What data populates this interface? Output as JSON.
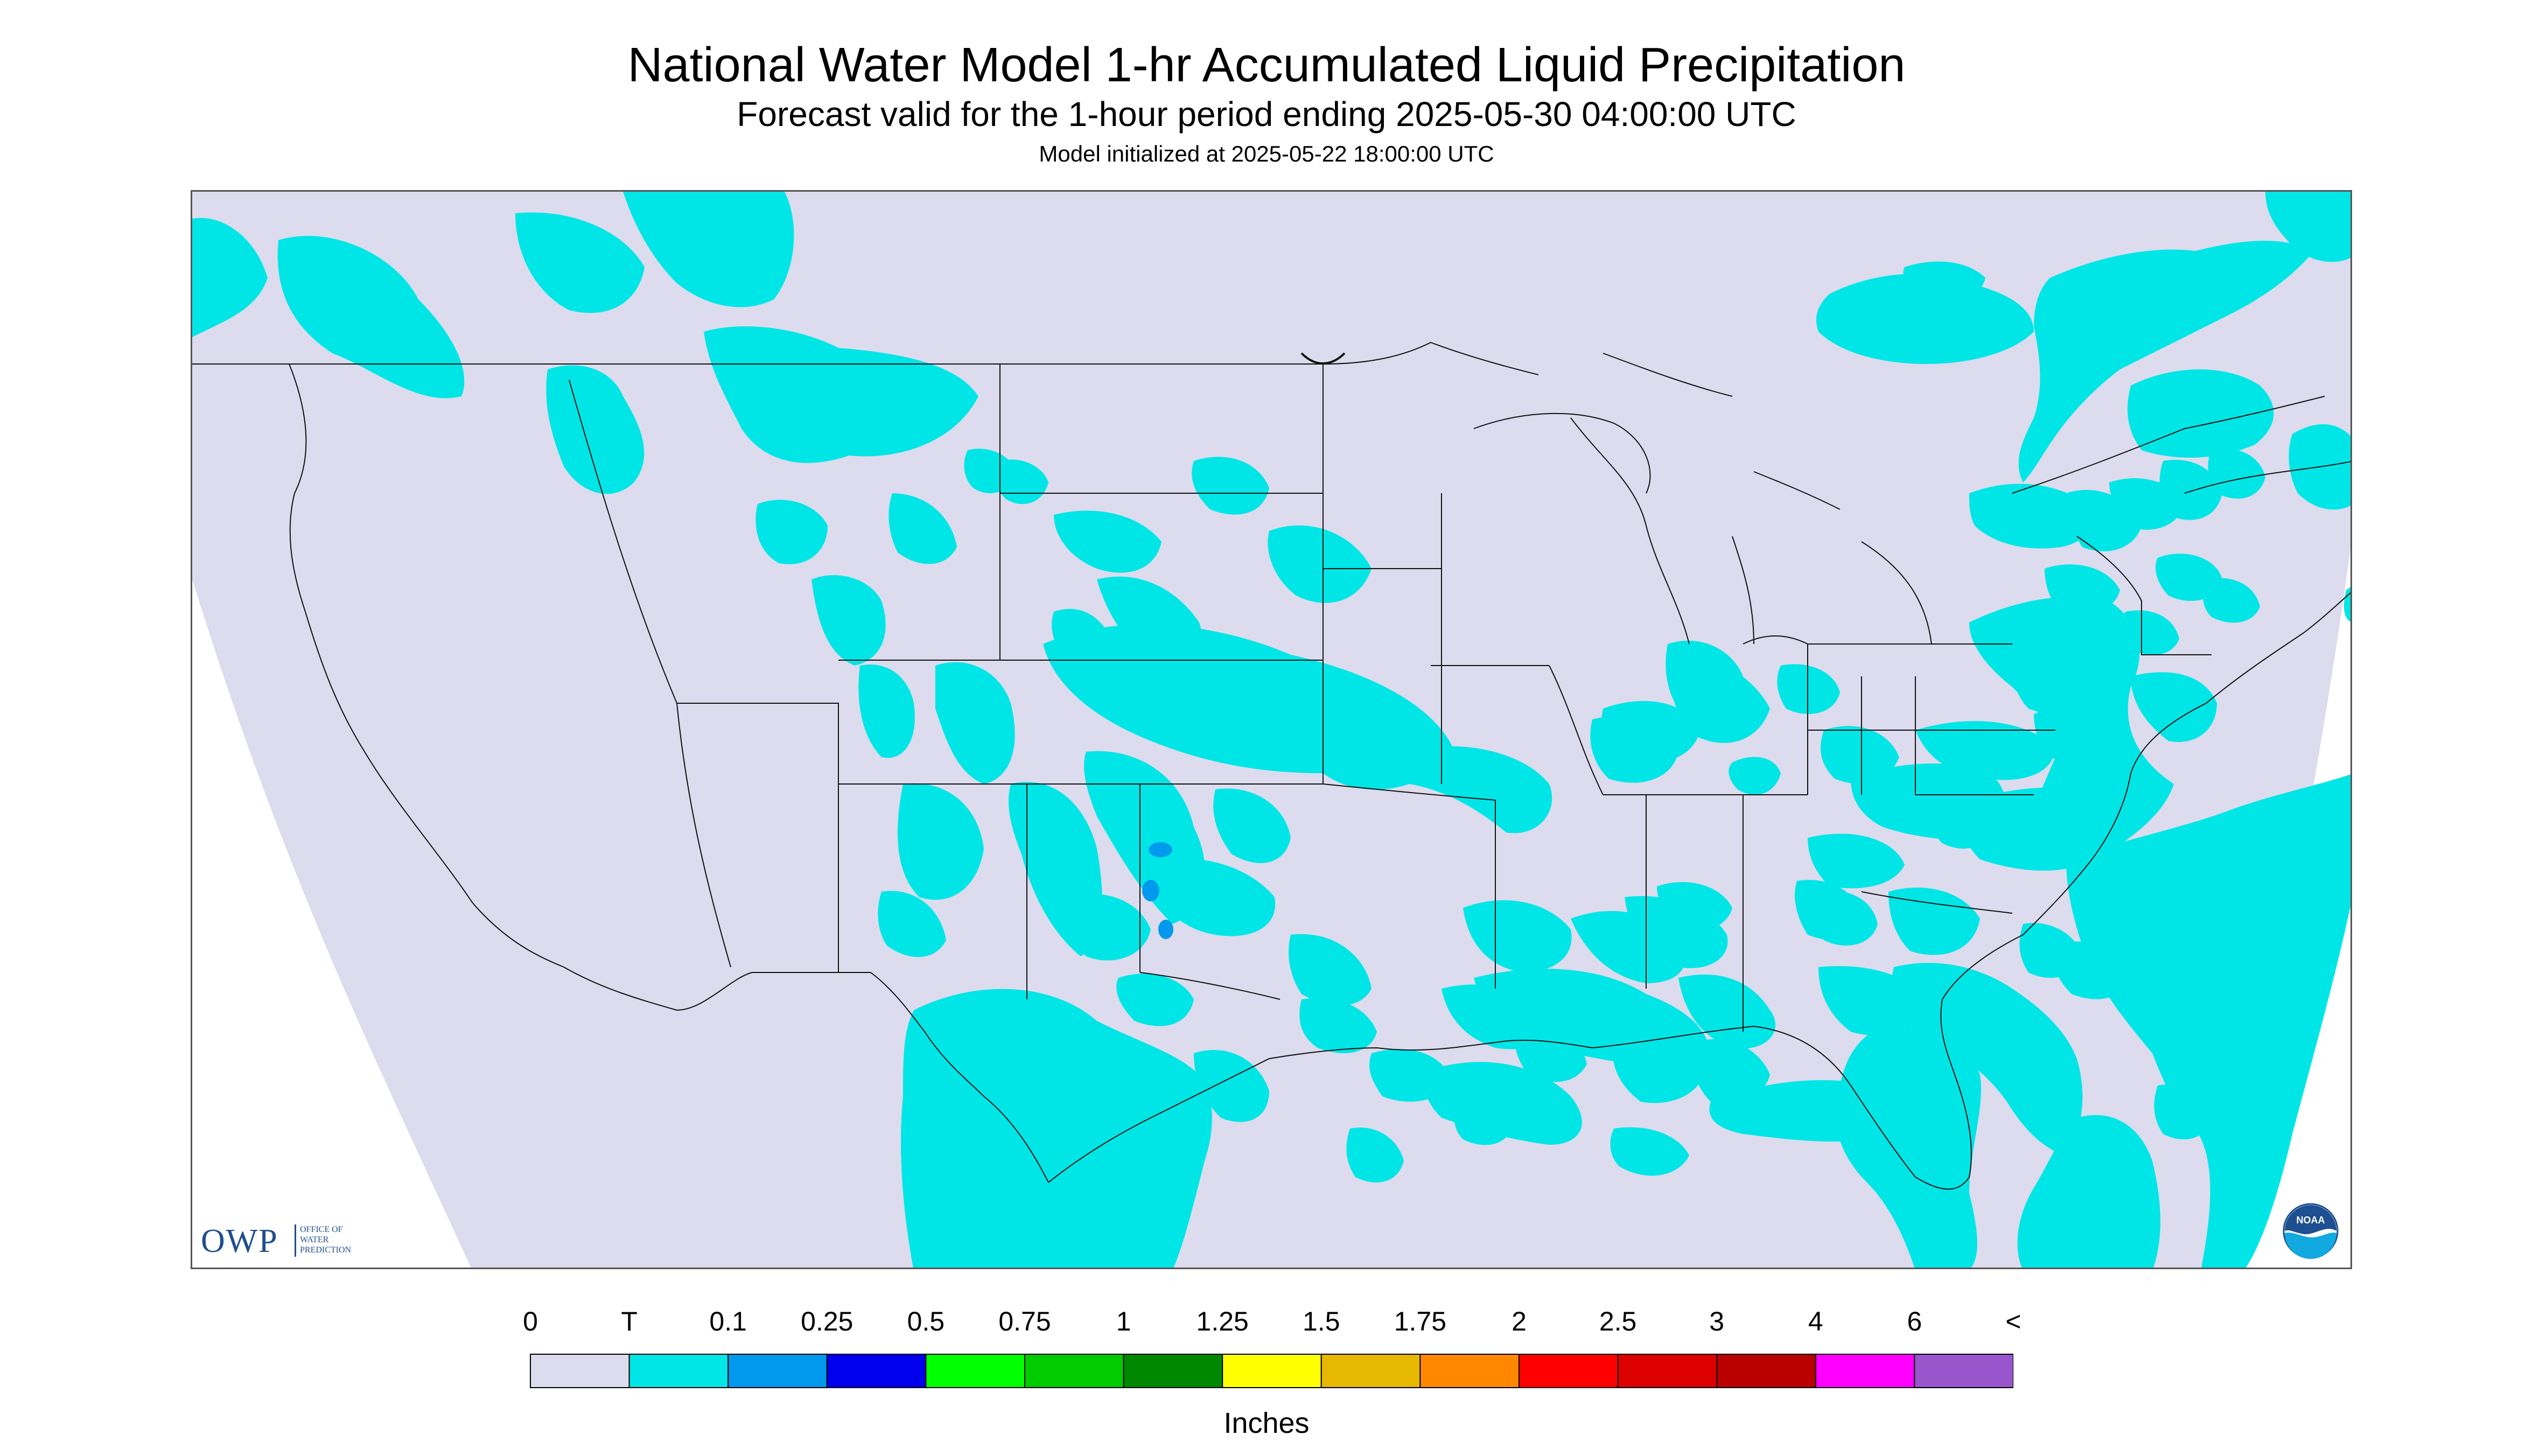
{
  "title": "National Water Model 1-hr Accumulated Liquid Precipitation",
  "subtitle": "Forecast valid for the 1-hour period ending 2025-05-30 04:00:00 UTC",
  "init_text": "Model initialized at 2025-05-22 18:00:00 UTC",
  "logo": {
    "owp_letters": "OWP",
    "owp_line1": "OFFICE OF",
    "owp_line2": "WATER",
    "owp_line3": "PREDICTION",
    "noaa_text": "NOAA"
  },
  "legend": {
    "labels": [
      "0",
      "T",
      "0.1",
      "0.25",
      "0.5",
      "0.75",
      "1",
      "1.25",
      "1.5",
      "1.75",
      "2",
      "2.5",
      "3",
      "4",
      "6",
      "<"
    ],
    "colors": [
      "#dcdcee",
      "#00e6e6",
      "#0099ee",
      "#0000ee",
      "#00ff00",
      "#00cc00",
      "#008800",
      "#ffff00",
      "#e6b800",
      "#ff8800",
      "#ff0000",
      "#dd0000",
      "#bb0000",
      "#ff00ff",
      "#9955cc"
    ],
    "unit": "Inches"
  },
  "map_colors": {
    "outside_domain": "#ffffff",
    "no_precip": "#dcdcee",
    "trace": "#00e6e6",
    "light": "#0099ee",
    "border": "#111111"
  }
}
